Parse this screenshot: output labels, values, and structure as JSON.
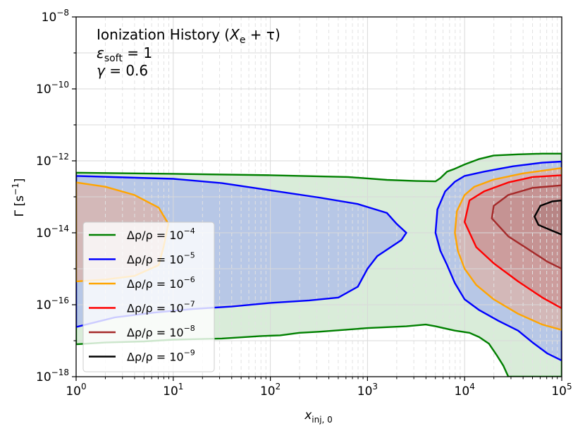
{
  "chart_data": {
    "type": "contour",
    "title": "Ionization History (X_e + τ)",
    "annotations": [
      {
        "id": "title",
        "prefix": "Ionization History (",
        "var": "X",
        "sub": "e",
        "suffix": " + τ)"
      },
      {
        "id": "eps",
        "var": "ε",
        "sub": "soft",
        "suffix": " = 1"
      },
      {
        "id": "gamma",
        "var": "γ",
        "sub": "",
        "suffix": " = 0.6"
      }
    ],
    "xlabel": {
      "var": "x",
      "sub": "inj, 0"
    },
    "ylabel": "Γ [s",
    "ylabel_exp": "−1",
    "ylabel_close": "]",
    "x_scale": "log",
    "y_scale": "log",
    "xlim_exp": [
      0,
      5
    ],
    "ylim_exp": [
      -18,
      -8
    ],
    "x_ticks": [
      {
        "base": "10",
        "exp": "0",
        "value": 0
      },
      {
        "base": "10",
        "exp": "1",
        "value": 1
      },
      {
        "base": "10",
        "exp": "2",
        "value": 2
      },
      {
        "base": "10",
        "exp": "3",
        "value": 3
      },
      {
        "base": "10",
        "exp": "4",
        "value": 4
      },
      {
        "base": "10",
        "exp": "5",
        "value": 5
      }
    ],
    "y_ticks": [
      {
        "base": "10",
        "exp": "−18",
        "value": -18
      },
      {
        "base": "10",
        "exp": "−16",
        "value": -16
      },
      {
        "base": "10",
        "exp": "−14",
        "value": -14
      },
      {
        "base": "10",
        "exp": "−12",
        "value": -12
      },
      {
        "base": "10",
        "exp": "−10",
        "value": -10
      },
      {
        "base": "10",
        "exp": "−8",
        "value": -8
      }
    ],
    "grid": "on (major solid, minor dashed)",
    "legend_position": "lower-left",
    "series": [
      {
        "name": "Δρ/ρ = 10⁻⁴",
        "label_base": "Δρ/ρ = 10",
        "label_exp": "−4",
        "color": "#008000",
        "fill": "#d6ead6",
        "fill_opacity": 0.0,
        "regions": [
          [
            [
              0,
              -12.33
            ],
            [
              1,
              -12.36
            ],
            [
              2,
              -12.4
            ],
            [
              2.8,
              -12.45
            ],
            [
              3.2,
              -12.53
            ],
            [
              3.5,
              -12.56
            ],
            [
              3.7,
              -12.57
            ],
            [
              3.75,
              -12.48
            ],
            [
              3.82,
              -12.3
            ],
            [
              3.9,
              -12.22
            ],
            [
              4,
              -12.1
            ],
            [
              4.15,
              -11.95
            ],
            [
              4.3,
              -11.85
            ],
            [
              4.55,
              -11.82
            ],
            [
              4.8,
              -11.8
            ],
            [
              5,
              -11.8
            ],
            [
              5,
              -18
            ],
            [
              4.45,
              -18
            ],
            [
              4.4,
              -17.7
            ],
            [
              4.33,
              -17.4
            ],
            [
              4.25,
              -17.08
            ],
            [
              4.15,
              -16.9
            ],
            [
              4.05,
              -16.78
            ],
            [
              3.9,
              -16.72
            ],
            [
              3.7,
              -16.6
            ],
            [
              3.6,
              -16.55
            ],
            [
              3.4,
              -16.6
            ],
            [
              3,
              -16.65
            ],
            [
              2.5,
              -16.75
            ],
            [
              2.3,
              -16.78
            ],
            [
              2.1,
              -16.85
            ],
            [
              1.9,
              -16.87
            ],
            [
              1.5,
              -16.94
            ],
            [
              1,
              -16.97
            ],
            [
              0.7,
              -17.02
            ],
            [
              0.3,
              -17.05
            ],
            [
              0,
              -17.1
            ]
          ]
        ]
      },
      {
        "name": "Δρ/ρ = 10⁻⁵",
        "label_base": "Δρ/ρ = 10",
        "label_exp": "−5",
        "color": "#0000ff",
        "fill": "#b3c3e3",
        "fill_opacity": 0.0,
        "regions": [
          [
            [
              0,
              -12.42
            ],
            [
              0.5,
              -12.46
            ],
            [
              1,
              -12.5
            ],
            [
              1.5,
              -12.62
            ],
            [
              2,
              -12.82
            ],
            [
              2.5,
              -13.02
            ],
            [
              2.9,
              -13.2
            ],
            [
              3.2,
              -13.45
            ],
            [
              3.3,
              -13.75
            ],
            [
              3.4,
              -14
            ],
            [
              3.35,
              -14.2
            ],
            [
              3.1,
              -14.65
            ],
            [
              3,
              -15
            ],
            [
              2.9,
              -15.5
            ],
            [
              2.7,
              -15.8
            ],
            [
              2.4,
              -15.88
            ],
            [
              2,
              -15.95
            ],
            [
              1.6,
              -16.05
            ],
            [
              1.2,
              -16.12
            ],
            [
              0.8,
              -16.22
            ],
            [
              0.4,
              -16.35
            ],
            [
              0,
              -16.62
            ]
          ],
          [
            [
              3.7,
              -14
            ],
            [
              3.72,
              -13.35
            ],
            [
              3.8,
              -12.85
            ],
            [
              3.9,
              -12.58
            ],
            [
              4,
              -12.42
            ],
            [
              4.2,
              -12.3
            ],
            [
              4.5,
              -12.15
            ],
            [
              4.8,
              -12.05
            ],
            [
              5,
              -12.02
            ],
            [
              5,
              -17.55
            ],
            [
              4.85,
              -17.35
            ],
            [
              4.7,
              -17.05
            ],
            [
              4.55,
              -16.72
            ],
            [
              4.35,
              -16.45
            ],
            [
              4.15,
              -16.15
            ],
            [
              4.0,
              -15.85
            ],
            [
              3.9,
              -15.4
            ],
            [
              3.82,
              -14.9
            ],
            [
              3.75,
              -14.5
            ]
          ]
        ]
      },
      {
        "name": "Δρ/ρ = 10⁻⁶",
        "label_base": "Δρ/ρ = 10",
        "label_exp": "−6",
        "color": "#ffa500",
        "fill": "#d4b5b5",
        "fill_opacity": 0.0,
        "regions": [
          [
            [
              0,
              -12.6
            ],
            [
              0.3,
              -12.72
            ],
            [
              0.6,
              -12.95
            ],
            [
              0.85,
              -13.3
            ],
            [
              0.95,
              -13.75
            ],
            [
              0.9,
              -14.4
            ],
            [
              0.85,
              -14.9
            ],
            [
              0.6,
              -15.2
            ],
            [
              0.3,
              -15.3
            ],
            [
              0,
              -15.35
            ]
          ],
          [
            [
              3.9,
              -14
            ],
            [
              3.92,
              -13.4
            ],
            [
              4,
              -12.95
            ],
            [
              4.1,
              -12.72
            ],
            [
              4.3,
              -12.52
            ],
            [
              4.6,
              -12.35
            ],
            [
              5,
              -12.2
            ],
            [
              5,
              -16.7
            ],
            [
              4.8,
              -16.55
            ],
            [
              4.55,
              -16.25
            ],
            [
              4.3,
              -15.85
            ],
            [
              4.12,
              -15.45
            ],
            [
              4,
              -15
            ],
            [
              3.93,
              -14.5
            ]
          ]
        ]
      },
      {
        "name": "Δρ/ρ = 10⁻⁷",
        "label_base": "Δρ/ρ = 10",
        "label_exp": "−7",
        "color": "#ff0000",
        "fill": "#c99a9a",
        "fill_opacity": 0.0,
        "regions": [
          [
            [
              4,
              -13.7
            ],
            [
              4.05,
              -13.1
            ],
            [
              4.2,
              -12.85
            ],
            [
              4.45,
              -12.6
            ],
            [
              4.7,
              -12.45
            ],
            [
              5,
              -12.4
            ],
            [
              5,
              -16.1
            ],
            [
              4.8,
              -15.8
            ],
            [
              4.55,
              -15.35
            ],
            [
              4.3,
              -14.85
            ],
            [
              4.12,
              -14.4
            ]
          ]
        ]
      },
      {
        "name": "Δρ/ρ = 10⁻⁸",
        "label_base": "Δρ/ρ = 10",
        "label_exp": "−8",
        "color": "#a52a2a",
        "fill": "#c29494",
        "fill_opacity": 0.0,
        "regions": [
          [
            [
              4.28,
              -13.6
            ],
            [
              4.3,
              -13.25
            ],
            [
              4.45,
              -12.95
            ],
            [
              4.7,
              -12.75
            ],
            [
              5,
              -12.68
            ],
            [
              5,
              -15.0
            ],
            [
              4.85,
              -14.8
            ],
            [
              4.65,
              -14.45
            ],
            [
              4.45,
              -14.1
            ]
          ]
        ]
      },
      {
        "name": "Δρ/ρ = 10⁻⁹",
        "label_base": "Δρ/ρ = 10",
        "label_exp": "−9",
        "color": "#000000",
        "fill": "#b78a8a",
        "fill_opacity": 0.0,
        "regions": [
          [
            [
              4.72,
              -13.55
            ],
            [
              4.78,
              -13.25
            ],
            [
              4.9,
              -13.13
            ],
            [
              5,
              -13.1
            ],
            [
              5,
              -14.05
            ],
            [
              4.88,
              -13.92
            ],
            [
              4.76,
              -13.78
            ]
          ]
        ]
      }
    ]
  }
}
